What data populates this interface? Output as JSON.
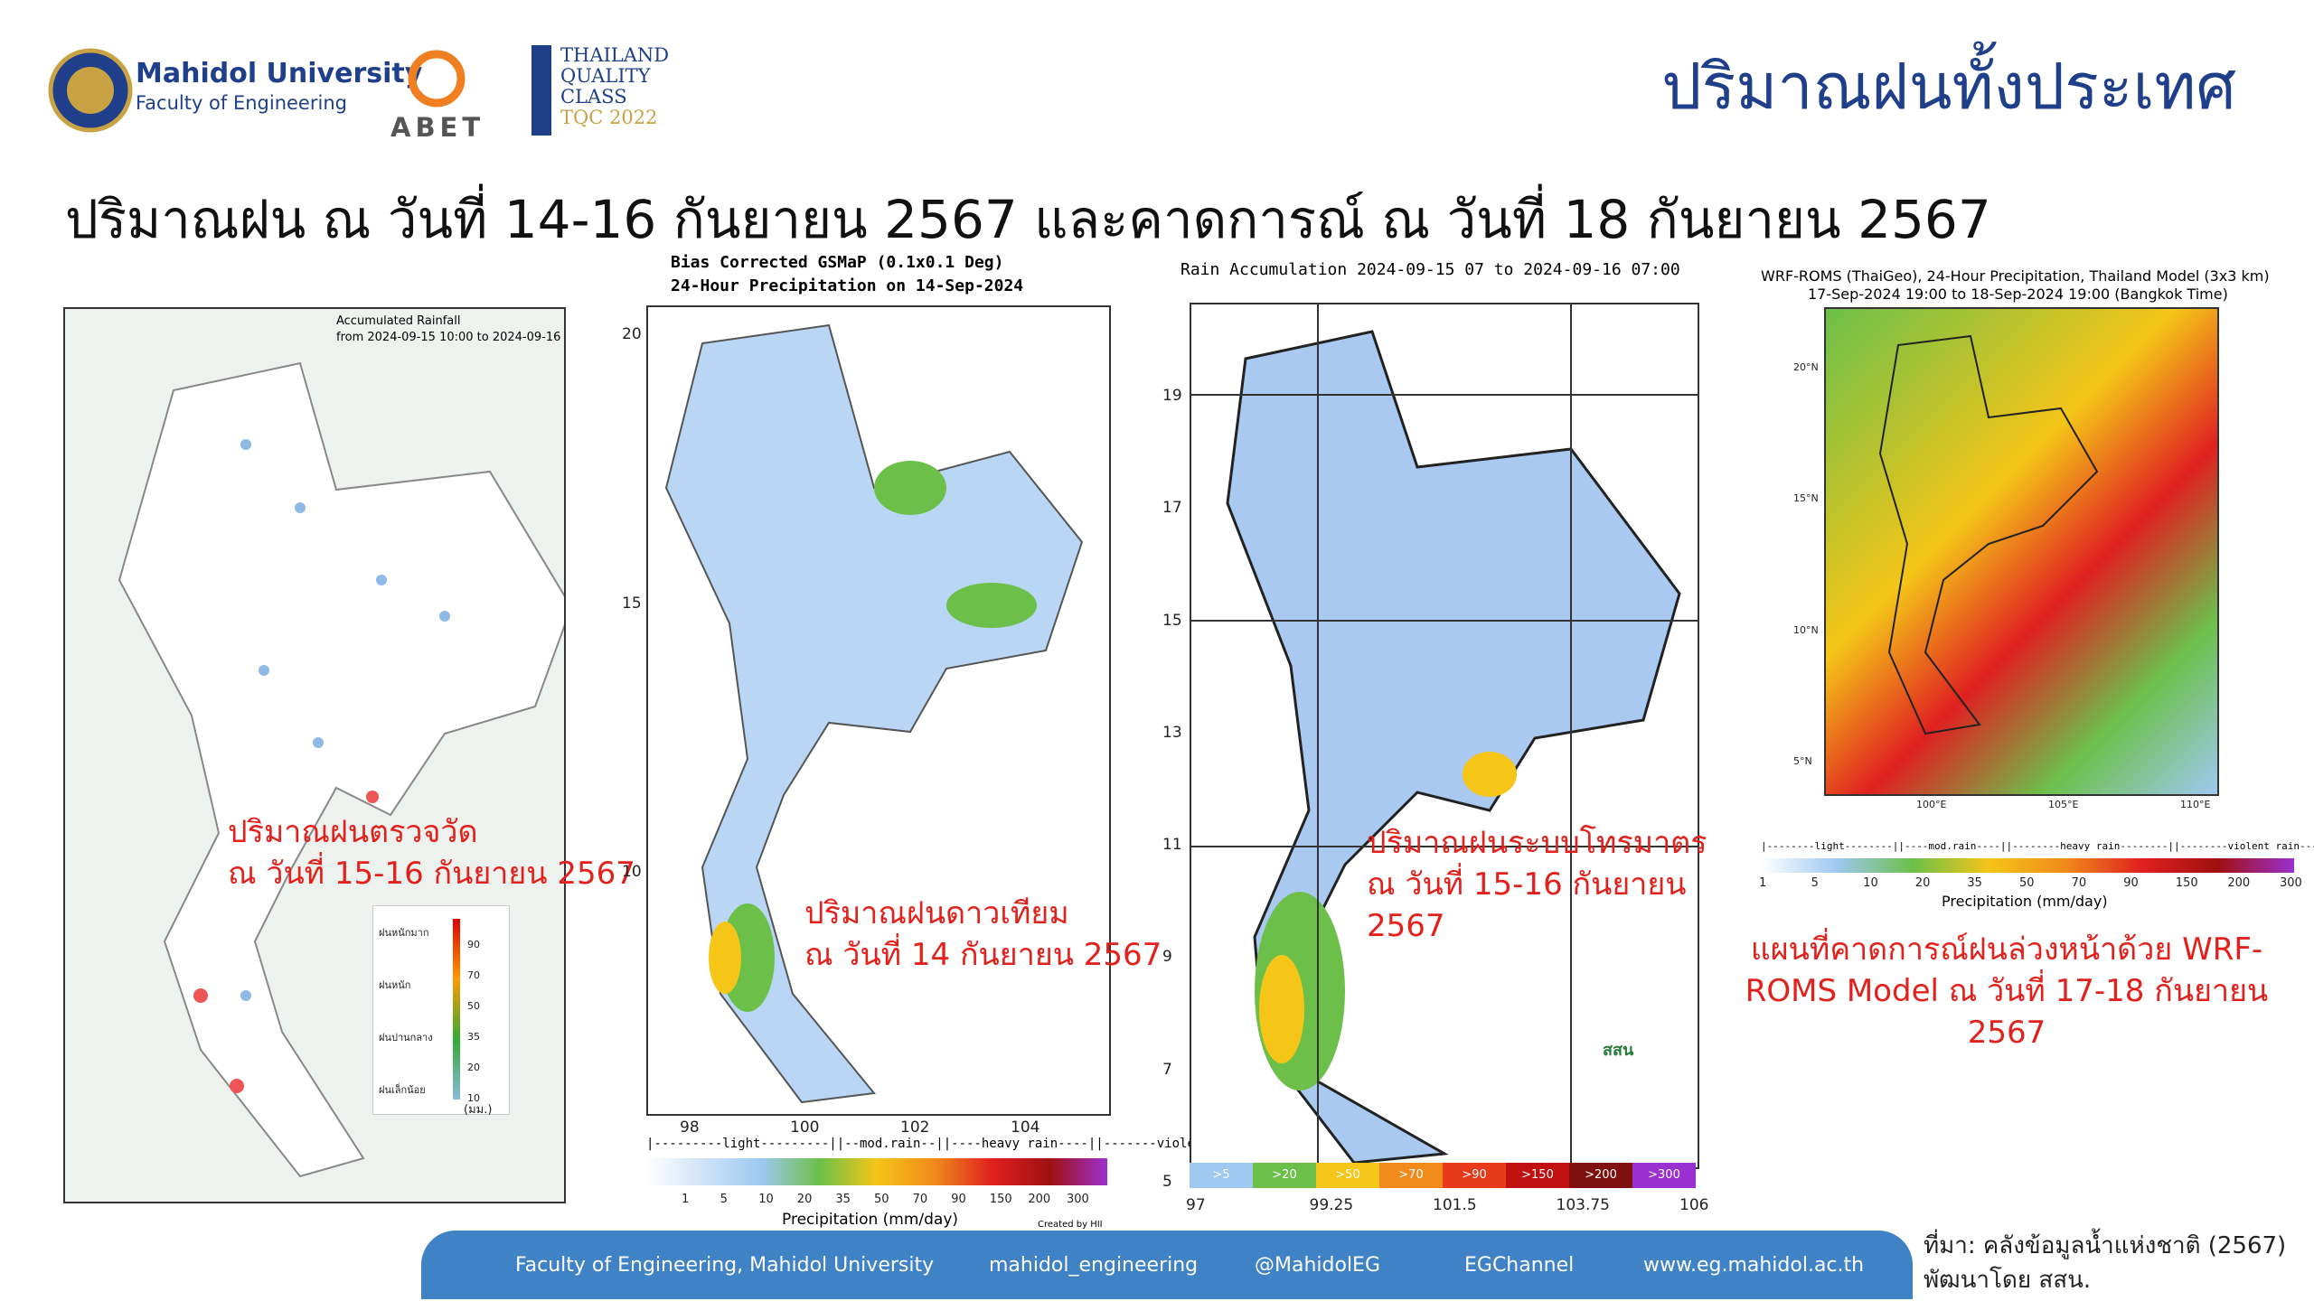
{
  "header": {
    "university": "Mahidol University",
    "faculty": "Faculty of Engineering",
    "abet": "ABET",
    "tqc": [
      "THAILAND",
      "QUALITY",
      "CLASS",
      "TQC 2022"
    ],
    "page_title": "ปริมาณฝนทั้งประเทศ"
  },
  "subtitle": "ปริมาณฝน ณ วันที่ 14-16 กันยายน 2567 และคาดการณ์ ณ วันที่ 18 กันยายน 2567",
  "panels": [
    {
      "title": "Accumulated Rainfall",
      "period": "from  2024-09-15 10:00 to 2024-09-16 10:00",
      "legend_labels": [
        "ฝนหนักมาก",
        "ฝนหนัก",
        "ฝนปานกลาง",
        "ฝนเล็กน้อย"
      ],
      "legend_values": [
        "90",
        "70",
        "50",
        "35",
        "20",
        "10"
      ],
      "legend_unit": "(มม.)",
      "caption": [
        "ปริมาณฝนตรวจวัด",
        "ณ วันที่ 15-16 กันยายน 2567"
      ]
    },
    {
      "title": "Bias Corrected GSMaP (0.1x0.1 Deg)",
      "period": "24-Hour Precipitation on 14-Sep-2024",
      "yticks": [
        "20",
        "15",
        "10"
      ],
      "xticks": [
        "98",
        "100",
        "102",
        "104"
      ],
      "legend_bands": "|---------light---------||--mod.rain--||----heavy rain----||-------violent rain-------|",
      "legend_values": [
        "1",
        "5",
        "10",
        "20",
        "35",
        "50",
        "70",
        "90",
        "150",
        "200",
        "300"
      ],
      "legend_title": "Precipitation (mm/day)",
      "credit": "Created by HII",
      "caption": [
        "ปริมาณฝนดาวเทียม",
        "ณ วันที่ 14 กันยายน 2567"
      ]
    },
    {
      "title": "Rain Accumulation 2024-09-15 07 to 2024-09-16 07:00",
      "yticks": [
        "19",
        "17",
        "15",
        "13",
        "11",
        "9",
        "7",
        "5"
      ],
      "xticks": [
        "97",
        "99.25",
        "101.5",
        "103.75",
        "106"
      ],
      "legend_values": [
        ">5",
        ">20",
        ">50",
        ">70",
        ">90",
        ">150",
        ">200",
        ">300"
      ],
      "logo": "สสน",
      "caption": [
        "ปริมาณฝนระบบโทรมาตร",
        "ณ วันที่ 15-16 กันยายน",
        "2567"
      ]
    },
    {
      "title": "WRF-ROMS (ThaiGeo), 24-Hour Precipitation, Thailand Model (3x3 km)",
      "period": "17-Sep-2024 19:00 to 18-Sep-2024 19:00 (Bangkok Time)",
      "yticks": [
        "20°N",
        "15°N",
        "10°N",
        "5°N"
      ],
      "xticks": [
        "100°E",
        "105°E",
        "110°E"
      ],
      "legend_bands": "|--------light--------||----mod.rain----||--------heavy rain--------||--------violent rain--------|",
      "legend_values": [
        "1",
        "5",
        "10",
        "20",
        "35",
        "50",
        "70",
        "90",
        "150",
        "200",
        "300"
      ],
      "legend_title": "Precipitation (mm/day)",
      "caption": [
        "แผนที่คาดการณ์ฝนล่วงหน้าด้วย WRF-",
        "ROMS Model ณ วันที่ 17-18 กันยายน",
        "2567"
      ]
    }
  ],
  "footer": {
    "links": [
      "Faculty of Engineering, Mahidol University",
      "mahidol_engineering",
      "@MahidolEG",
      "EGChannel",
      "www.eg.mahidol.ac.th"
    ],
    "source": [
      "ที่มา: คลังข้อมูลน้ำแห่งชาติ (2567)",
      "พัฒนาโดย สสน."
    ]
  }
}
